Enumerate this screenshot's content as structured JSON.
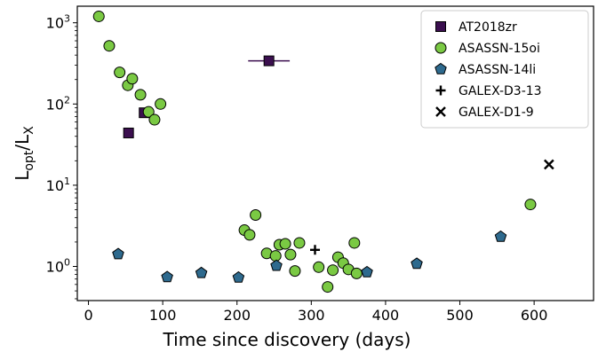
{
  "chart_data": {
    "type": "scatter",
    "xlabel": "Time since discovery (days)",
    "ylabel": {
      "base": "L",
      "sub1": "opt",
      "sep": "/L",
      "sub2": "X"
    },
    "xlim": [
      -15,
      680
    ],
    "ylim": [
      0.38,
      1600
    ],
    "yscale": "log",
    "grid": false,
    "legend_position": "top-right",
    "x_ticks": [
      0,
      100,
      200,
      300,
      400,
      500,
      600
    ],
    "x_tick_labels": [
      "0",
      "100",
      "200",
      "300",
      "400",
      "500",
      "600"
    ],
    "y_ticks": [
      1,
      10,
      100,
      1000
    ],
    "y_tick_labels": [
      {
        "base": "10",
        "exp": "0"
      },
      {
        "base": "10",
        "exp": "1"
      },
      {
        "base": "10",
        "exp": "2"
      },
      {
        "base": "10",
        "exp": "3"
      }
    ],
    "series": [
      {
        "name": "AT2018zr",
        "marker": "square",
        "color": "#3b0f4f",
        "points": [
          {
            "x": 54,
            "y": 44
          },
          {
            "x": 75,
            "y": 78
          },
          {
            "x": 243,
            "y": 340,
            "xerr": 28
          }
        ]
      },
      {
        "name": "ASASSN-15oi",
        "marker": "circle",
        "color": "#7ac943",
        "points": [
          {
            "x": 14,
            "y": 1200
          },
          {
            "x": 28,
            "y": 520
          },
          {
            "x": 42,
            "y": 245
          },
          {
            "x": 53,
            "y": 170
          },
          {
            "x": 59,
            "y": 205
          },
          {
            "x": 70,
            "y": 130
          },
          {
            "x": 81,
            "y": 80
          },
          {
            "x": 89,
            "y": 64
          },
          {
            "x": 97,
            "y": 100
          },
          {
            "x": 210,
            "y": 2.8
          },
          {
            "x": 217,
            "y": 2.45
          },
          {
            "x": 225,
            "y": 4.3
          },
          {
            "x": 240,
            "y": 1.45
          },
          {
            "x": 252,
            "y": 1.35
          },
          {
            "x": 257,
            "y": 1.85
          },
          {
            "x": 265,
            "y": 1.9
          },
          {
            "x": 272,
            "y": 1.4
          },
          {
            "x": 278,
            "y": 0.88
          },
          {
            "x": 284,
            "y": 1.95
          },
          {
            "x": 310,
            "y": 0.98
          },
          {
            "x": 322,
            "y": 0.56
          },
          {
            "x": 329,
            "y": 0.9
          },
          {
            "x": 336,
            "y": 1.3
          },
          {
            "x": 343,
            "y": 1.1
          },
          {
            "x": 350,
            "y": 0.92
          },
          {
            "x": 358,
            "y": 1.95
          },
          {
            "x": 361,
            "y": 0.82
          },
          {
            "x": 595,
            "y": 5.8
          }
        ]
      },
      {
        "name": "ASASSN-14li",
        "marker": "pentagon",
        "color": "#2e6a8e",
        "points": [
          {
            "x": 40,
            "y": 1.42
          },
          {
            "x": 106,
            "y": 0.74
          },
          {
            "x": 152,
            "y": 0.83
          },
          {
            "x": 202,
            "y": 0.73
          },
          {
            "x": 253,
            "y": 1.02
          },
          {
            "x": 375,
            "y": 0.85
          },
          {
            "x": 442,
            "y": 1.08
          },
          {
            "x": 555,
            "y": 2.32
          }
        ]
      },
      {
        "name": "GALEX-D3-13",
        "marker": "plus",
        "color": "#000000",
        "points": [
          {
            "x": 305,
            "y": 1.6
          }
        ]
      },
      {
        "name": "GALEX-D1-9",
        "marker": "x",
        "color": "#000000",
        "points": [
          {
            "x": 620,
            "y": 18
          }
        ]
      }
    ]
  }
}
